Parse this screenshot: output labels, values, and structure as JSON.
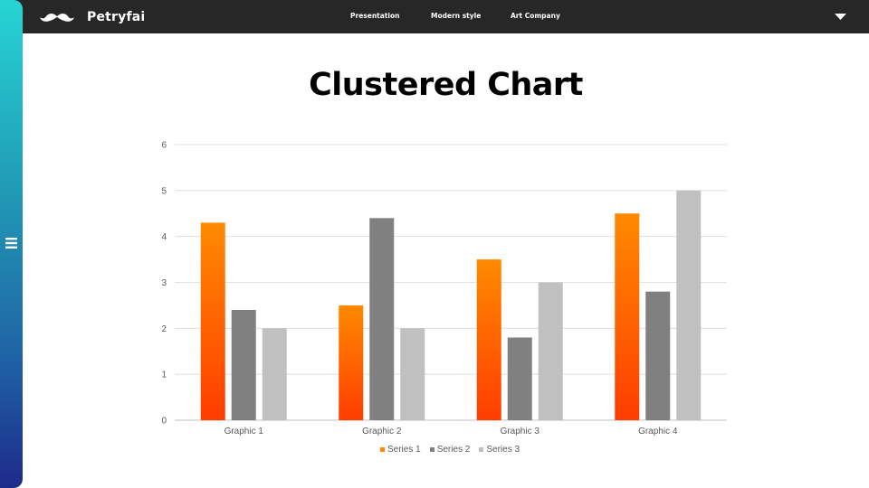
{
  "header": {
    "brand": "Petryfai",
    "nav": [
      "Presentation",
      "Modern style",
      "Art Company"
    ],
    "logo_icon": "mustache-icon",
    "dropdown_icon": "caret-down-icon"
  },
  "sidebar": {
    "menu_icon": "hamburger-icon"
  },
  "slide": {
    "title": "Clustered Chart"
  },
  "colors": {
    "series1_top": "#ff8a00",
    "series1_bottom": "#ff3d00",
    "series2": "#808080",
    "series3": "#c0c0c0",
    "grid": "#d9d9d9",
    "tick": "#595959"
  },
  "chart_data": {
    "type": "bar",
    "categories": [
      "Graphic 1",
      "Graphic 2",
      "Graphic 3",
      "Graphic 4"
    ],
    "series": [
      {
        "name": "Series 1",
        "values": [
          4.3,
          2.5,
          3.5,
          4.5
        ]
      },
      {
        "name": "Series 2",
        "values": [
          2.4,
          4.4,
          1.8,
          2.8
        ]
      },
      {
        "name": "Series 3",
        "values": [
          2,
          2,
          3,
          5
        ]
      }
    ],
    "ylim": [
      0,
      6
    ],
    "yticks": [
      "0",
      "1",
      "2",
      "3",
      "4",
      "5",
      "6"
    ],
    "grid": true,
    "legend": "bottom",
    "xlabel": "",
    "ylabel": ""
  }
}
